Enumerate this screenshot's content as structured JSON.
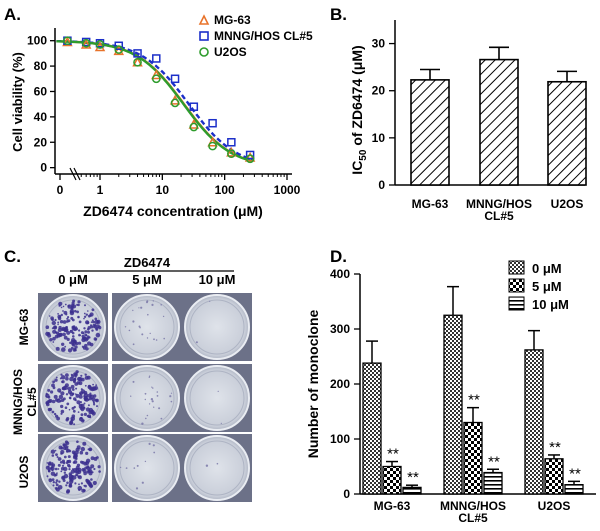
{
  "panel_labels": {
    "a": "A.",
    "b": "B.",
    "c": "C.",
    "d": "D."
  },
  "chart_data": [
    {
      "panel": "A",
      "type": "scatter",
      "xscale": "log",
      "xlabel": "ZD6474 concentration (μM)",
      "ylabel": "Cell viability (%)",
      "xlim": [
        0,
        1000
      ],
      "ylim": [
        -5,
        110
      ],
      "xticks": [
        0,
        1,
        10,
        100,
        1000
      ],
      "xtick_labels": [
        "0",
        "1",
        "10",
        "100",
        "1000"
      ],
      "yticks": [
        0,
        20,
        40,
        60,
        80,
        100
      ],
      "ytick_labels": [
        "0",
        "20",
        "40",
        "60",
        "80",
        "100"
      ],
      "x": [
        0.3,
        0.6,
        1,
        2,
        4,
        8,
        16,
        32,
        64,
        128,
        256
      ],
      "series": [
        {
          "name": "MG-63",
          "marker": "triangle",
          "color": "#e8732a",
          "values": [
            99,
            97,
            95,
            92,
            83,
            73,
            53,
            34,
            20,
            12,
            8
          ],
          "ic50": 22.3
        },
        {
          "name": "MNNG/HOS CL#5",
          "marker": "square",
          "color": "#1c2fc9",
          "values": [
            100,
            99,
            98,
            96,
            90,
            86,
            70,
            48,
            35,
            20,
            10
          ],
          "ic50": 26.6
        },
        {
          "name": "U2OS",
          "marker": "circle",
          "color": "#2e9c2c",
          "values": [
            100,
            98,
            97,
            93,
            83,
            70,
            51,
            32,
            17,
            11,
            7
          ],
          "ic50": 21.9
        }
      ]
    },
    {
      "panel": "B",
      "type": "bar",
      "ylabel_main": "IC",
      "ylabel_sub": "50",
      "ylabel_rest": " of ZD6474 (μM)",
      "categories": [
        [
          "MG-63"
        ],
        [
          "MNNG/HOS",
          "CL#5"
        ],
        [
          "U2OS"
        ]
      ],
      "values": [
        22.3,
        26.6,
        21.9
      ],
      "errors": [
        2.2,
        2.6,
        2.2
      ],
      "ylim": [
        0,
        35
      ],
      "yticks": [
        0,
        10,
        20,
        30
      ],
      "ytick_labels": [
        "0",
        "10",
        "20",
        "30"
      ]
    },
    {
      "panel": "D",
      "type": "bar",
      "ylabel": "Number of monoclone",
      "categories": [
        [
          "MG-63"
        ],
        [
          "MNNG/HOS",
          "CL#5"
        ],
        [
          "U2OS"
        ]
      ],
      "ylim": [
        0,
        400
      ],
      "yticks": [
        0,
        100,
        200,
        300,
        400
      ],
      "ytick_labels": [
        "0",
        "100",
        "200",
        "300",
        "400"
      ],
      "series": [
        {
          "name": "0 μM",
          "pattern": "check-fine",
          "values": [
            238,
            325,
            262
          ],
          "errors": [
            40,
            52,
            35
          ],
          "sig": [
            "",
            "",
            ""
          ]
        },
        {
          "name": "5 μM",
          "pattern": "check-coarse",
          "values": [
            50,
            130,
            64
          ],
          "errors": [
            9,
            27,
            7
          ],
          "sig": [
            "**",
            "**",
            "**"
          ]
        },
        {
          "name": "10 μM",
          "pattern": "hstripe",
          "values": [
            12,
            39,
            17
          ],
          "errors": [
            4,
            6,
            6
          ],
          "sig": [
            "**",
            "**",
            "**"
          ]
        }
      ]
    }
  ],
  "panel_c": {
    "treatment": "ZD6474",
    "concentrations": [
      "0 μM",
      "5 μM",
      "10 μM"
    ],
    "rows": [
      [
        "MG-63"
      ],
      [
        "MNNG/HOS",
        "CL#5"
      ],
      [
        "U2OS"
      ]
    ]
  }
}
